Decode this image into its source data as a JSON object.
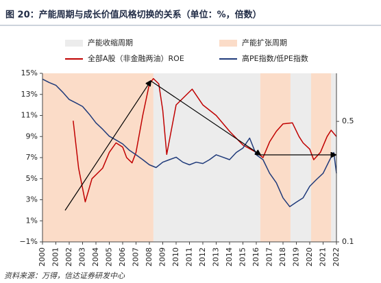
{
  "chart_data": {
    "type": "line",
    "title": "图 20：产能周期与成长价值风格切换的关系（单位：%，倍数）",
    "source": "资料来源：万得，信达证券研发中心",
    "band_series": [
      {
        "name": "产能收缩周期",
        "color": "#ececec",
        "ranges": [
          [
            2008.3,
            2016.3
          ],
          [
            2018.56,
            2020.1
          ],
          [
            2021.6,
            2022
          ]
        ]
      },
      {
        "name": "产能扩张周期",
        "color": "#fbdcc8",
        "ranges": [
          [
            2000,
            2008.3
          ],
          [
            2016.3,
            2018.56
          ],
          [
            2020.1,
            2021.6
          ]
        ]
      }
    ],
    "series": [
      {
        "name": "全部A股（非金融两油）ROE",
        "color": "#c00000",
        "axis": "y",
        "x": [
          2002.3,
          2002.7,
          2003.2,
          2003.7,
          2004.5,
          2005,
          2005.5,
          2006,
          2006.3,
          2006.7,
          2007,
          2007.5,
          2008,
          2008.3,
          2008.7,
          2009,
          2009.3,
          2010,
          2011.2,
          2012,
          2013,
          2014,
          2015,
          2016,
          2016.5,
          2017,
          2017.5,
          2018,
          2018.7,
          2019.2,
          2019.5,
          2020,
          2020.3,
          2020.8,
          2021.3,
          2021.6,
          2022
        ],
        "values": [
          10.5,
          6,
          2.8,
          5,
          6,
          7.5,
          8.4,
          8,
          7,
          6.5,
          7.5,
          11,
          14,
          14.5,
          14,
          11.5,
          7.3,
          12,
          13.5,
          12,
          11,
          9.5,
          8.2,
          7.5,
          7,
          8.5,
          9.5,
          10.2,
          10.3,
          9,
          8.4,
          7.8,
          6.8,
          7.5,
          9,
          9.6,
          9
        ]
      },
      {
        "name": "高PE指数/低PE指数",
        "color": "#1f3a7a",
        "axis": "y2",
        "x": [
          2000,
          2000.5,
          2001,
          2001.5,
          2002,
          2002.5,
          2003,
          2003.5,
          2004,
          2004.5,
          2005,
          2005.5,
          2006,
          2006.5,
          2007,
          2007.5,
          2008,
          2008.5,
          2009,
          2009.5,
          2010,
          2010.5,
          2011,
          2011.5,
          2012,
          2012.5,
          2013,
          2013.5,
          2014,
          2014.5,
          2015,
          2015.5,
          2016,
          2016.5,
          2017,
          2017.5,
          2018,
          2018.5,
          2019,
          2019.5,
          2020,
          2020.5,
          2021,
          2021.5,
          2021.8,
          2022
        ],
        "values": [
          0.88,
          0.84,
          0.81,
          0.74,
          0.67,
          0.64,
          0.61,
          0.55,
          0.49,
          0.45,
          0.41,
          0.39,
          0.37,
          0.34,
          0.32,
          0.3,
          0.28,
          0.27,
          0.29,
          0.3,
          0.31,
          0.29,
          0.28,
          0.29,
          0.285,
          0.3,
          0.32,
          0.31,
          0.3,
          0.33,
          0.35,
          0.4,
          0.32,
          0.3,
          0.25,
          0.22,
          0.18,
          0.16,
          0.17,
          0.18,
          0.21,
          0.23,
          0.25,
          0.3,
          0.33,
          0.25
        ]
      }
    ],
    "xlim": [
      2000,
      2022
    ],
    "xticks": [
      2000,
      2001,
      2002,
      2003,
      2004,
      2005,
      2006,
      2007,
      2008,
      2009,
      2010,
      2011,
      2012,
      2013,
      2014,
      2015,
      2016,
      2017,
      2018,
      2019,
      2020,
      2021,
      2022
    ],
    "ylim": [
      -1,
      15
    ],
    "yticks": [
      {
        "value": -1,
        "label": "−1%"
      },
      {
        "value": 1,
        "label": "1%"
      },
      {
        "value": 3,
        "label": "3%"
      },
      {
        "value": 5,
        "label": "5%"
      },
      {
        "value": 7,
        "label": "7%"
      },
      {
        "value": 9,
        "label": "9%"
      },
      {
        "value": 11,
        "label": "11%"
      },
      {
        "value": 13,
        "label": "13%"
      },
      {
        "value": 15,
        "label": "15%"
      }
    ],
    "y2lim": [
      0.1,
      0.95
    ],
    "y2ticks": [
      0.1,
      0.5
    ],
    "y2scale": "log"
  }
}
